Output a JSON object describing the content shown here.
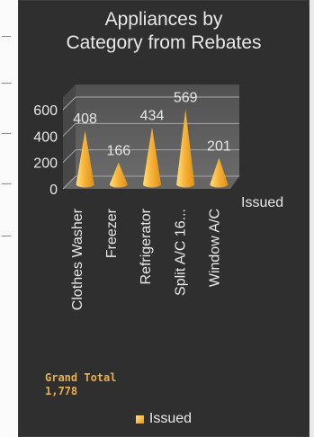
{
  "chart_data": {
    "type": "bar",
    "style": "3d-cone",
    "title": "Appliances by\nCategory from Rebates",
    "categories": [
      "Clothes Washer",
      "Freezer",
      "Refrigerator",
      "Split A/C 16...",
      "Window A/C"
    ],
    "series": [
      {
        "name": "Issued",
        "values": [
          408,
          166,
          434,
          569,
          201
        ]
      }
    ],
    "data_labels": [
      "408",
      "166",
      "434",
      "569",
      "201"
    ],
    "y_ticks": [
      "600",
      "400",
      "200",
      "0"
    ],
    "ylim": [
      0,
      600
    ],
    "depth_axis_label": "Issued",
    "legend": {
      "position": "bottom",
      "entries": [
        "Issued"
      ]
    },
    "grid": true
  },
  "grand_total": {
    "label": "Grand Total",
    "value": "1,778"
  },
  "colors": {
    "panel": "#2f2f2f",
    "text": "#e8e8e8",
    "cone_light": "#ffe07a",
    "cone_dark": "#e08f14",
    "total_text": "#e8b04a"
  }
}
